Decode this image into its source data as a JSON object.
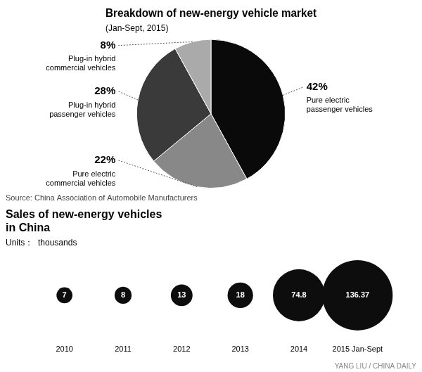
{
  "chart_data": [
    {
      "type": "pie",
      "title": "Breakdown of new-energy vehicle market",
      "subtitle": "(Jan-Sept, 2015)",
      "categories": [
        "Pure electric\npassenger vehicles",
        "Pure electric\ncommercial vehicles",
        "Plug-in hybrid\npassenger vehicles",
        "Plug-in hybrid\ncommercial vehicles"
      ],
      "values": [
        42,
        22,
        28,
        8
      ],
      "value_labels": [
        "42%",
        "22%",
        "28%",
        "8%"
      ],
      "colors": [
        "#0a0a0a",
        "#888888",
        "#3a3a3a",
        "#aaaaaa"
      ],
      "data_labels": true,
      "annotations": [
        "Source: China Association of Automobile Manufacturers"
      ]
    },
    {
      "type": "bubble",
      "title": [
        "Sales of new-energy vehicles",
        "in China"
      ],
      "subtitle": "Units：  thousands",
      "categories": [
        "2010",
        "2011",
        "2012",
        "2013",
        "2014",
        "2015 Jan-Sept"
      ],
      "values": [
        7,
        8,
        13,
        18,
        74.8,
        136.37
      ],
      "color": "#0d0d0d",
      "data_labels": true,
      "grid": false,
      "tick_labels": "x",
      "annotations": [
        "YANG LIU / CHINA DAILY"
      ]
    }
  ]
}
